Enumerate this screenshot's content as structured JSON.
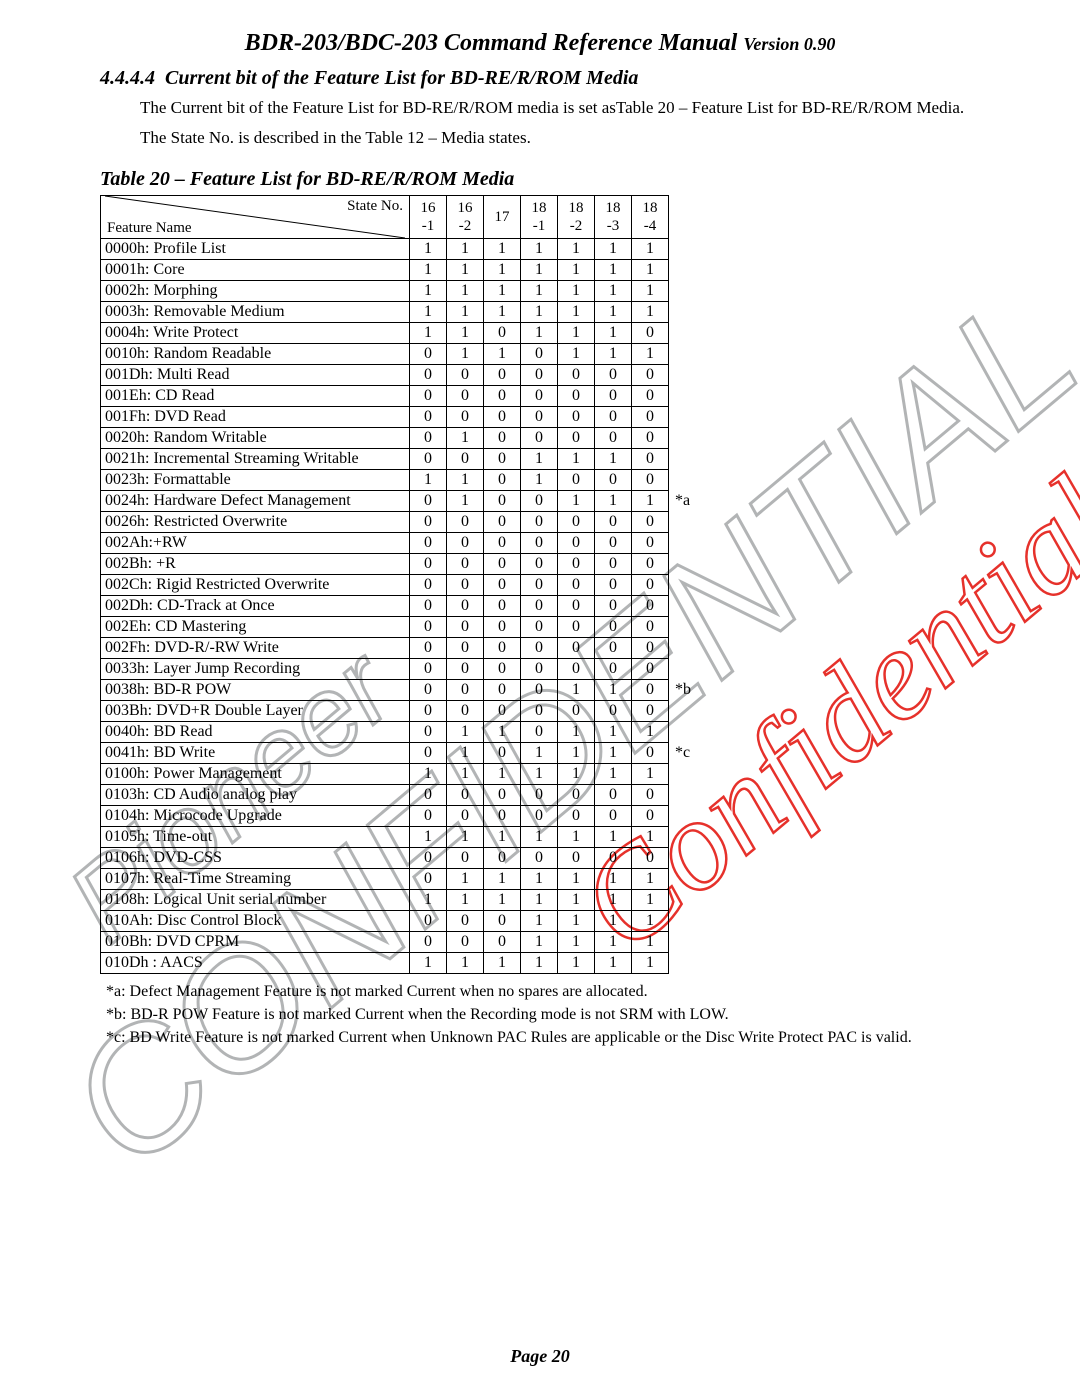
{
  "header": {
    "title_main": "BDR-203/BDC-203 Command Reference Manual ",
    "title_version": "Version 0.90"
  },
  "section": {
    "number": "4.4.4.4",
    "title": "Current bit of the Feature List for BD-RE/R/ROM Media",
    "para1": "The Current bit of the Feature List for BD-RE/R/ROM media is set asTable 20 – Feature List for BD-RE/R/ROM Media.",
    "para2": "The State No. is described in the Table 12 – Media states."
  },
  "table": {
    "title": "Table 20 – Feature List for BD-RE/R/ROM Media",
    "header_diag_top": "State No.",
    "header_diag_bottom": "Feature Name",
    "state_headers": [
      "16\n-1",
      "16\n-2",
      "17",
      "18\n-1",
      "18\n-2",
      "18\n-3",
      "18\n-4"
    ],
    "rows": [
      {
        "name": "0000h: Profile List",
        "vals": [
          "1",
          "1",
          "1",
          "1",
          "1",
          "1",
          "1"
        ],
        "note": ""
      },
      {
        "name": "0001h: Core",
        "vals": [
          "1",
          "1",
          "1",
          "1",
          "1",
          "1",
          "1"
        ],
        "note": ""
      },
      {
        "name": "0002h: Morphing",
        "vals": [
          "1",
          "1",
          "1",
          "1",
          "1",
          "1",
          "1"
        ],
        "note": ""
      },
      {
        "name": "0003h: Removable Medium",
        "vals": [
          "1",
          "1",
          "1",
          "1",
          "1",
          "1",
          "1"
        ],
        "note": ""
      },
      {
        "name": "0004h: Write Protect",
        "vals": [
          "1",
          "1",
          "0",
          "1",
          "1",
          "1",
          "0"
        ],
        "note": ""
      },
      {
        "name": "0010h: Random Readable",
        "vals": [
          "0",
          "1",
          "1",
          "0",
          "1",
          "1",
          "1"
        ],
        "note": ""
      },
      {
        "name": "001Dh: Multi Read",
        "vals": [
          "0",
          "0",
          "0",
          "0",
          "0",
          "0",
          "0"
        ],
        "note": ""
      },
      {
        "name": "001Eh: CD Read",
        "vals": [
          "0",
          "0",
          "0",
          "0",
          "0",
          "0",
          "0"
        ],
        "note": ""
      },
      {
        "name": "001Fh: DVD Read",
        "vals": [
          "0",
          "0",
          "0",
          "0",
          "0",
          "0",
          "0"
        ],
        "note": ""
      },
      {
        "name": "0020h: Random Writable",
        "vals": [
          "0",
          "1",
          "0",
          "0",
          "0",
          "0",
          "0"
        ],
        "note": ""
      },
      {
        "name": "0021h: Incremental Streaming Writable",
        "vals": [
          "0",
          "0",
          "0",
          "1",
          "1",
          "1",
          "0"
        ],
        "note": ""
      },
      {
        "name": "0023h: Formattable",
        "vals": [
          "1",
          "1",
          "0",
          "1",
          "0",
          "0",
          "0"
        ],
        "note": ""
      },
      {
        "name": "0024h: Hardware Defect Management",
        "vals": [
          "0",
          "1",
          "0",
          "0",
          "1",
          "1",
          "1"
        ],
        "note": "*a"
      },
      {
        "name": "0026h: Restricted Overwrite",
        "vals": [
          "0",
          "0",
          "0",
          "0",
          "0",
          "0",
          "0"
        ],
        "note": ""
      },
      {
        "name": "002Ah:+RW",
        "vals": [
          "0",
          "0",
          "0",
          "0",
          "0",
          "0",
          "0"
        ],
        "note": ""
      },
      {
        "name": "002Bh: +R",
        "vals": [
          "0",
          "0",
          "0",
          "0",
          "0",
          "0",
          "0"
        ],
        "note": ""
      },
      {
        "name": "002Ch: Rigid Restricted Overwrite",
        "vals": [
          "0",
          "0",
          "0",
          "0",
          "0",
          "0",
          "0"
        ],
        "note": ""
      },
      {
        "name": "002Dh: CD-Track at Once",
        "vals": [
          "0",
          "0",
          "0",
          "0",
          "0",
          "0",
          "0"
        ],
        "note": ""
      },
      {
        "name": "002Eh: CD Mastering",
        "vals": [
          "0",
          "0",
          "0",
          "0",
          "0",
          "0",
          "0"
        ],
        "note": ""
      },
      {
        "name": "002Fh: DVD-R/-RW Write",
        "vals": [
          "0",
          "0",
          "0",
          "0",
          "0",
          "0",
          "0"
        ],
        "note": ""
      },
      {
        "name": "0033h: Layer Jump Recording",
        "vals": [
          "0",
          "0",
          "0",
          "0",
          "0",
          "0",
          "0"
        ],
        "note": ""
      },
      {
        "name": "0038h: BD-R POW",
        "vals": [
          "0",
          "0",
          "0",
          "0",
          "1",
          "1",
          "0"
        ],
        "note": "*b"
      },
      {
        "name": "003Bh: DVD+R Double Layer",
        "vals": [
          "0",
          "0",
          "0",
          "0",
          "0",
          "0",
          "0"
        ],
        "note": ""
      },
      {
        "name": "0040h: BD Read",
        "vals": [
          "0",
          "1",
          "1",
          "0",
          "1",
          "1",
          "1"
        ],
        "note": ""
      },
      {
        "name": "0041h: BD Write",
        "vals": [
          "0",
          "1",
          "0",
          "1",
          "1",
          "1",
          "0"
        ],
        "note": "*c"
      },
      {
        "name": "0100h: Power Management",
        "vals": [
          "1",
          "1",
          "1",
          "1",
          "1",
          "1",
          "1"
        ],
        "note": ""
      },
      {
        "name": "0103h: CD Audio analog play",
        "vals": [
          "0",
          "0",
          "0",
          "0",
          "0",
          "0",
          "0"
        ],
        "note": ""
      },
      {
        "name": "0104h: Microcode Upgrade",
        "vals": [
          "0",
          "0",
          "0",
          "0",
          "0",
          "0",
          "0"
        ],
        "note": ""
      },
      {
        "name": "0105h: Time-out",
        "vals": [
          "1",
          "1",
          "1",
          "1",
          "1",
          "1",
          "1"
        ],
        "note": ""
      },
      {
        "name": "0106h: DVD-CSS",
        "vals": [
          "0",
          "0",
          "0",
          "0",
          "0",
          "0",
          "0"
        ],
        "note": ""
      },
      {
        "name": "0107h: Real-Time Streaming",
        "vals": [
          "0",
          "1",
          "1",
          "1",
          "1",
          "1",
          "1"
        ],
        "note": ""
      },
      {
        "name": "0108h: Logical Unit serial number",
        "vals": [
          "1",
          "1",
          "1",
          "1",
          "1",
          "1",
          "1"
        ],
        "note": ""
      },
      {
        "name": "010Ah: Disc Control Block",
        "vals": [
          "0",
          "0",
          "0",
          "1",
          "1",
          "1",
          "1"
        ],
        "note": ""
      },
      {
        "name": "010Bh: DVD CPRM",
        "vals": [
          "0",
          "0",
          "0",
          "1",
          "1",
          "1",
          "1"
        ],
        "note": ""
      },
      {
        "name": "010Dh : AACS",
        "vals": [
          "1",
          "1",
          "1",
          "1",
          "1",
          "1",
          "1"
        ],
        "note": ""
      }
    ]
  },
  "footnotes": [
    "*a: Defect Management Feature is not marked Current when no spares are allocated.",
    "*b: BD-R POW Feature is not marked Current when the Recording mode is not SRM with LOW.",
    "*c: BD Write Feature is not marked Current when Unknown PAC Rules are applicable or the Disc Write Protect PAC is valid."
  ],
  "page_number": "Page  20",
  "watermark": {
    "text1": "Pioneer",
    "text2": "CONFIDENTIAL",
    "text3": "Confidential",
    "gray": "#aeb0b2",
    "red": "#e52620"
  }
}
